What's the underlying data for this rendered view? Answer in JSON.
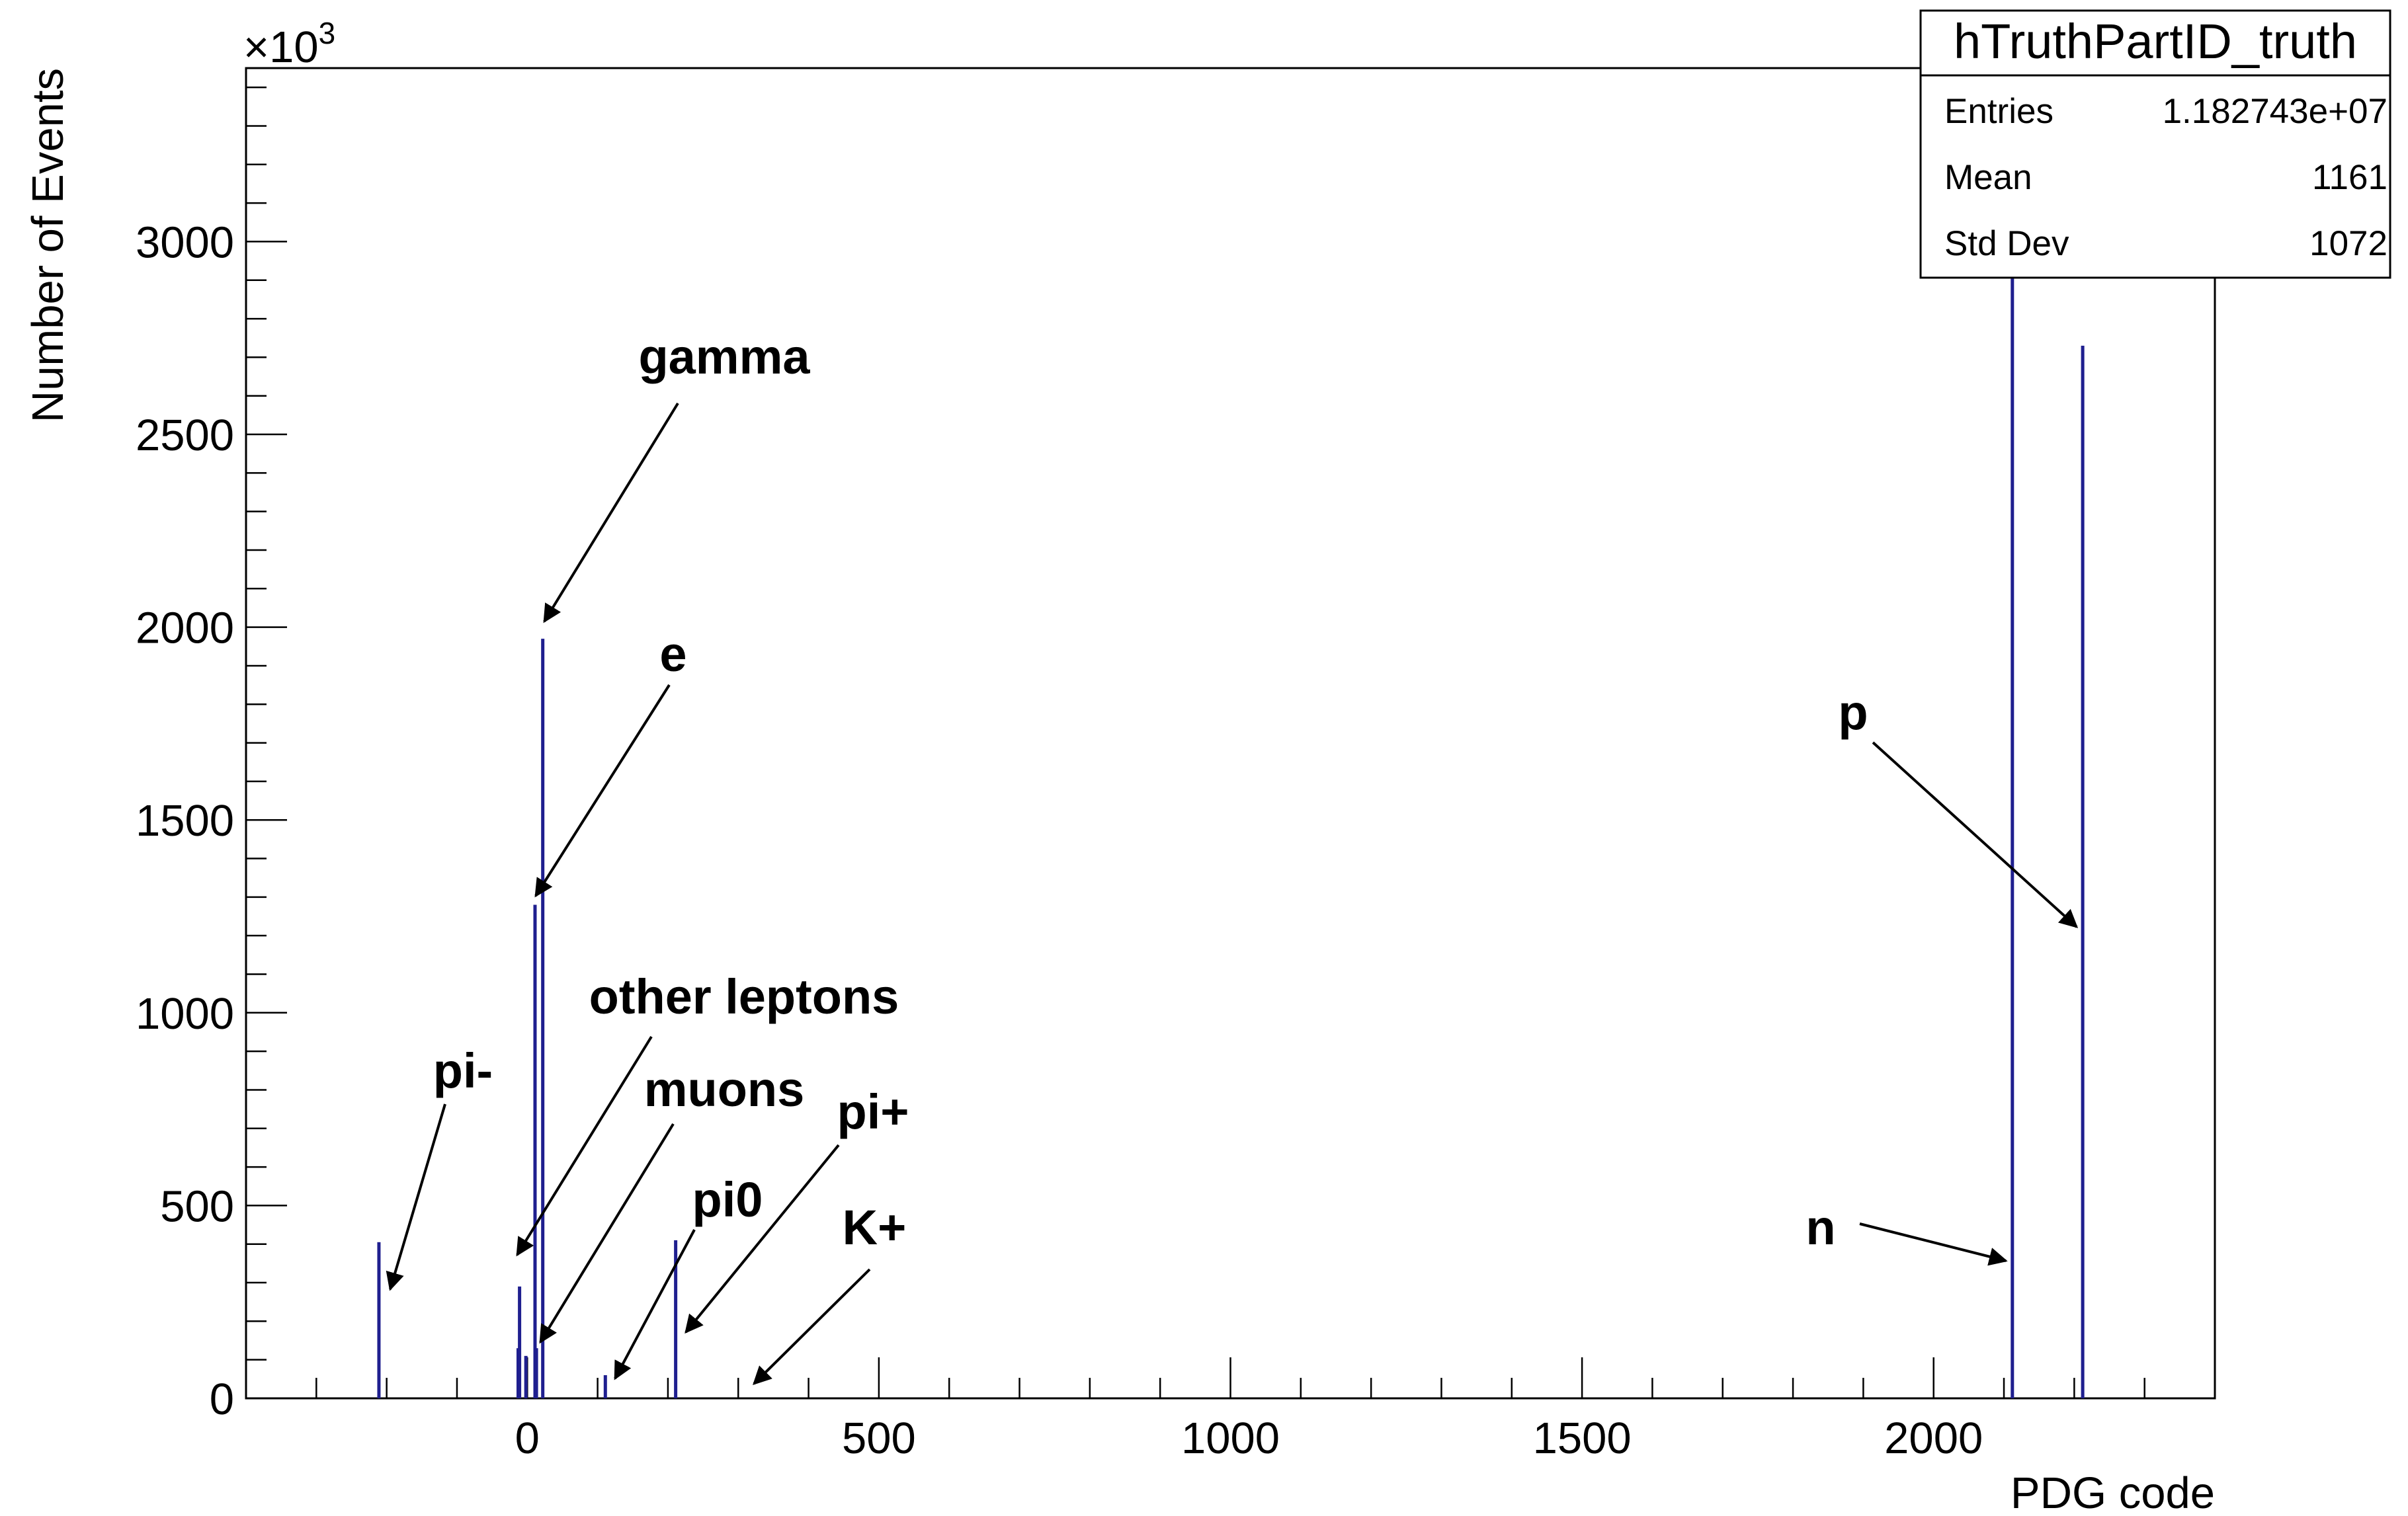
{
  "chart_data": {
    "type": "bar",
    "xlabel": "PDG code",
    "ylabel": "Number of Events",
    "y_multiplier_label": {
      "base": "×10",
      "exp": "3"
    },
    "xlim": [
      -400,
      2400
    ],
    "ylim": [
      0,
      3450
    ],
    "x_ticks": [
      {
        "value": 0,
        "label": "0"
      },
      {
        "value": 500,
        "label": "500"
      },
      {
        "value": 1000,
        "label": "1000"
      },
      {
        "value": 1500,
        "label": "1500"
      },
      {
        "value": 2000,
        "label": "2000"
      }
    ],
    "y_ticks": [
      {
        "value": 0,
        "label": "0"
      },
      {
        "value": 500,
        "label": "500"
      },
      {
        "value": 1000,
        "label": "1000"
      },
      {
        "value": 1500,
        "label": "1500"
      },
      {
        "value": 2000,
        "label": "2000"
      },
      {
        "value": 2500,
        "label": "2500"
      },
      {
        "value": 3000,
        "label": "3000"
      }
    ],
    "color": "#1f1f8f",
    "bins": [
      {
        "x": -211,
        "y": 405
      },
      {
        "x": -13,
        "y": 130
      },
      {
        "x": -11,
        "y": 290
      },
      {
        "x": -2,
        "y": 110
      },
      {
        "x": 11,
        "y": 1280
      },
      {
        "x": 13,
        "y": 130
      },
      {
        "x": 22,
        "y": 1970
      },
      {
        "x": 111,
        "y": 60
      },
      {
        "x": 211,
        "y": 410
      },
      {
        "x": 2112,
        "y": 3450
      },
      {
        "x": 2212,
        "y": 2730
      }
    ],
    "annotations": [
      {
        "text": "gamma"
      },
      {
        "text": "e"
      },
      {
        "text": "other leptons"
      },
      {
        "text": "muons"
      },
      {
        "text": "pi-"
      },
      {
        "text": "pi0"
      },
      {
        "text": "pi+"
      },
      {
        "text": "K+"
      },
      {
        "text": "p"
      },
      {
        "text": "n"
      }
    ],
    "stats_box": {
      "title": "hTruthPartID_truth",
      "rows": [
        {
          "label": "Entries",
          "value": "1.182743e+07"
        },
        {
          "label": "Mean",
          "value": "1161"
        },
        {
          "label": "Std Dev",
          "value": "1072"
        }
      ]
    }
  }
}
